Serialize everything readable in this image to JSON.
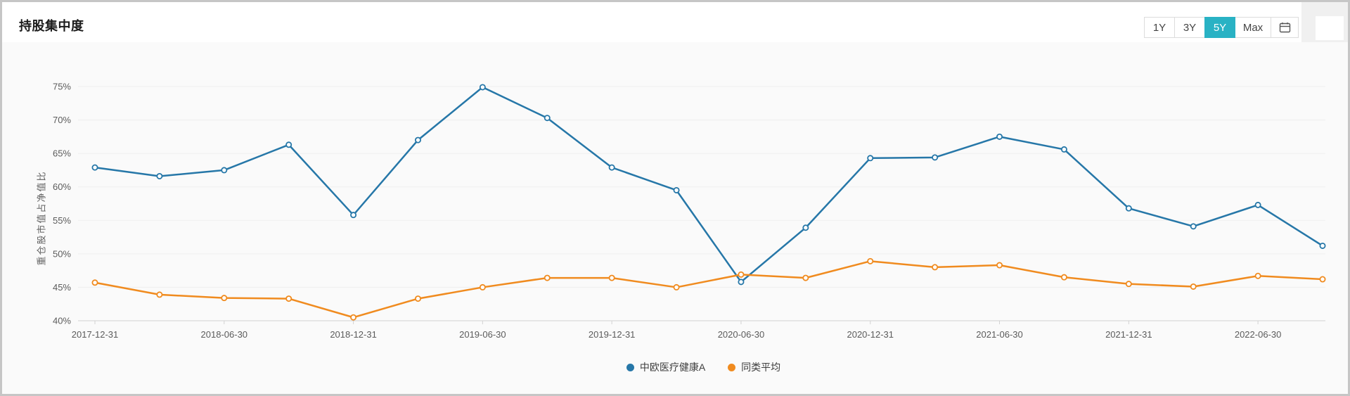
{
  "header": {
    "title": "持股集中度",
    "accent_color": "#29b2c4",
    "ranges": [
      {
        "label": "1Y",
        "active": false
      },
      {
        "label": "3Y",
        "active": false
      },
      {
        "label": "5Y",
        "active": true
      },
      {
        "label": "Max",
        "active": false
      }
    ],
    "calendar_icon": "calendar-icon"
  },
  "chart_data": {
    "type": "line",
    "title": "持股集中度",
    "ylabel": "重仓股市值占净值比",
    "y_unit": "%",
    "ylim": [
      40,
      75
    ],
    "ytick_step": 5,
    "ytick_labels": [
      "40%",
      "45%",
      "50%",
      "55%",
      "60%",
      "65%",
      "70%",
      "75%"
    ],
    "grid": true,
    "marker": "hollow-circle",
    "legend_position": "bottom-center",
    "xtick_every": 2,
    "xtick_labels": [
      "2017-12-31",
      "2018-06-30",
      "2018-12-31",
      "2019-06-30",
      "2019-12-31",
      "2020-06-30",
      "2020-12-31",
      "2021-06-30",
      "2021-12-31",
      "2022-06-30"
    ],
    "categories": [
      "2017-12-31",
      "2018-03-31",
      "2018-06-30",
      "2018-09-30",
      "2018-12-31",
      "2019-03-31",
      "2019-06-30",
      "2019-09-30",
      "2019-12-31",
      "2020-03-31",
      "2020-06-30",
      "2020-09-30",
      "2020-12-31",
      "2021-03-31",
      "2021-06-30",
      "2021-09-30",
      "2021-12-31",
      "2022-03-31",
      "2022-06-30",
      "2022-09-30"
    ],
    "series": [
      {
        "name": "中欧医疗健康A",
        "color": "#2677a8",
        "values": [
          62.9,
          61.6,
          62.5,
          66.3,
          55.8,
          67.0,
          74.9,
          70.3,
          62.9,
          59.5,
          45.8,
          53.9,
          64.3,
          64.4,
          67.5,
          65.6,
          56.8,
          54.1,
          57.3,
          51.2
        ]
      },
      {
        "name": "同类平均",
        "color": "#f08b1f",
        "values": [
          45.7,
          43.9,
          43.4,
          43.3,
          40.5,
          43.3,
          45.0,
          46.4,
          46.4,
          45.0,
          46.9,
          46.4,
          48.9,
          48.0,
          48.3,
          46.5,
          45.5,
          45.1,
          46.7,
          46.2
        ]
      }
    ],
    "axis_colors": {
      "grid_line": "#efefef",
      "axis_line": "#d2d2d2",
      "tick_label": "#5b5b5b"
    }
  }
}
